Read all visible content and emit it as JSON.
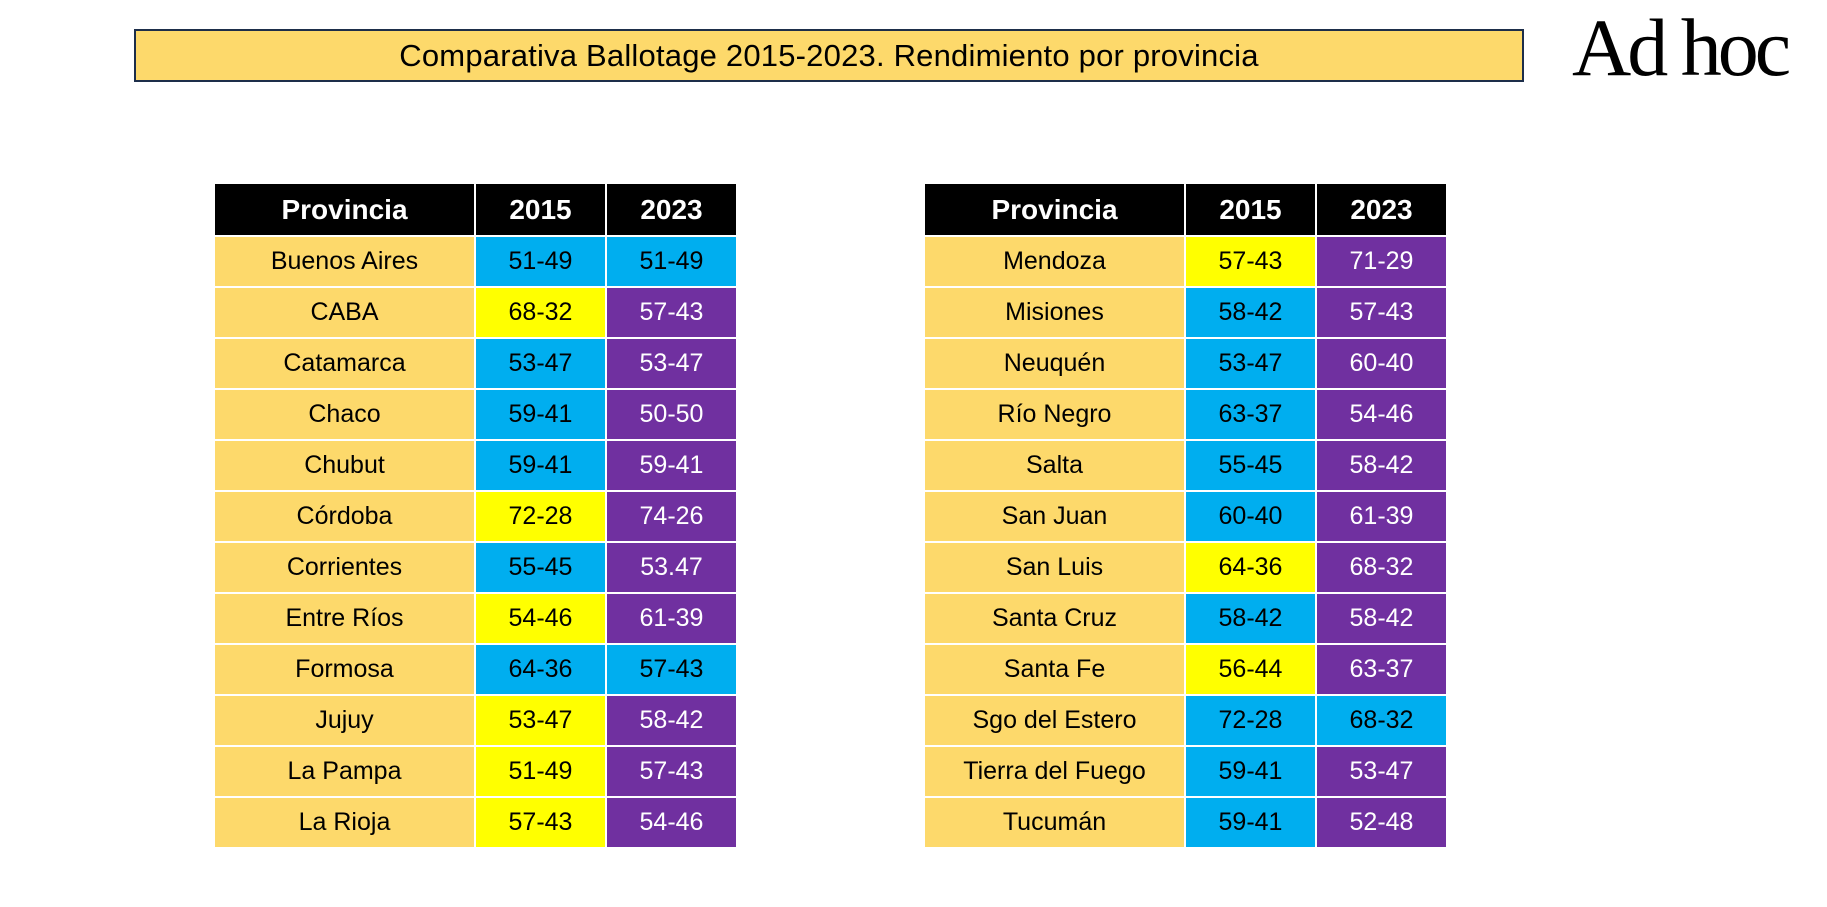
{
  "header": {
    "title": "Comparativa Ballotage 2015-2023. Rendimiento por provincia",
    "logo_text": "Ad hoc"
  },
  "colors": {
    "blue": "#00aeef",
    "yellow": "#ffff00",
    "purple": "#7030a0",
    "province_bg": "#fdd96b",
    "header_bg": "#000000"
  },
  "columns": [
    "Provincia",
    "2015",
    "2023"
  ],
  "left_table": [
    {
      "province": "Buenos Aires",
      "v2015": "51-49",
      "c2015": "blue",
      "v2023": "51-49",
      "c2023": "blue"
    },
    {
      "province": "CABA",
      "v2015": "68-32",
      "c2015": "yellow",
      "v2023": "57-43",
      "c2023": "purple"
    },
    {
      "province": "Catamarca",
      "v2015": "53-47",
      "c2015": "blue",
      "v2023": "53-47",
      "c2023": "purple"
    },
    {
      "province": "Chaco",
      "v2015": "59-41",
      "c2015": "blue",
      "v2023": "50-50",
      "c2023": "purple"
    },
    {
      "province": "Chubut",
      "v2015": "59-41",
      "c2015": "blue",
      "v2023": "59-41",
      "c2023": "purple"
    },
    {
      "province": "Córdoba",
      "v2015": "72-28",
      "c2015": "yellow",
      "v2023": "74-26",
      "c2023": "purple"
    },
    {
      "province": "Corrientes",
      "v2015": "55-45",
      "c2015": "blue",
      "v2023": "53.47",
      "c2023": "purple"
    },
    {
      "province": "Entre Ríos",
      "v2015": "54-46",
      "c2015": "yellow",
      "v2023": "61-39",
      "c2023": "purple"
    },
    {
      "province": "Formosa",
      "v2015": "64-36",
      "c2015": "blue",
      "v2023": "57-43",
      "c2023": "blue"
    },
    {
      "province": "Jujuy",
      "v2015": "53-47",
      "c2015": "yellow",
      "v2023": "58-42",
      "c2023": "purple"
    },
    {
      "province": "La Pampa",
      "v2015": "51-49",
      "c2015": "yellow",
      "v2023": "57-43",
      "c2023": "purple"
    },
    {
      "province": "La Rioja",
      "v2015": "57-43",
      "c2015": "yellow",
      "v2023": "54-46",
      "c2023": "purple"
    }
  ],
  "right_table": [
    {
      "province": "Mendoza",
      "v2015": "57-43",
      "c2015": "yellow",
      "v2023": "71-29",
      "c2023": "purple"
    },
    {
      "province": "Misiones",
      "v2015": "58-42",
      "c2015": "blue",
      "v2023": "57-43",
      "c2023": "purple"
    },
    {
      "province": "Neuquén",
      "v2015": "53-47",
      "c2015": "blue",
      "v2023": "60-40",
      "c2023": "purple"
    },
    {
      "province": "Río Negro",
      "v2015": "63-37",
      "c2015": "blue",
      "v2023": "54-46",
      "c2023": "purple"
    },
    {
      "province": "Salta",
      "v2015": "55-45",
      "c2015": "blue",
      "v2023": "58-42",
      "c2023": "purple"
    },
    {
      "province": "San Juan",
      "v2015": "60-40",
      "c2015": "blue",
      "v2023": "61-39",
      "c2023": "purple"
    },
    {
      "province": "San Luis",
      "v2015": "64-36",
      "c2015": "yellow",
      "v2023": "68-32",
      "c2023": "purple"
    },
    {
      "province": "Santa Cruz",
      "v2015": "58-42",
      "c2015": "blue",
      "v2023": "58-42",
      "c2023": "purple"
    },
    {
      "province": "Santa Fe",
      "v2015": "56-44",
      "c2015": "yellow",
      "v2023": "63-37",
      "c2023": "purple"
    },
    {
      "province": "Sgo del Estero",
      "v2015": "72-28",
      "c2015": "blue",
      "v2023": "68-32",
      "c2023": "blue"
    },
    {
      "province": "Tierra del Fuego",
      "v2015": "59-41",
      "c2015": "blue",
      "v2023": "53-47",
      "c2023": "purple"
    },
    {
      "province": "Tucumán",
      "v2015": "59-41",
      "c2015": "blue",
      "v2023": "52-48",
      "c2023": "purple"
    }
  ]
}
